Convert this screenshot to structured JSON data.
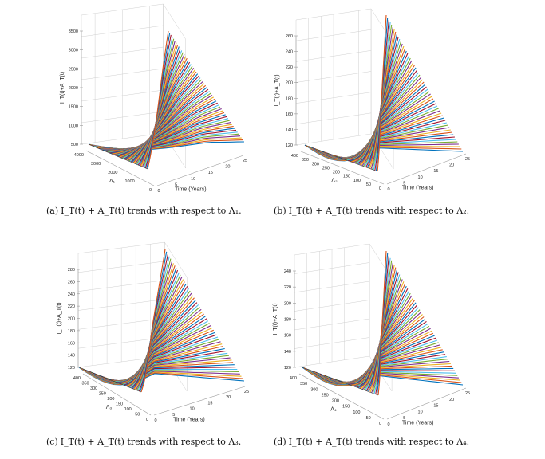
{
  "chart_data": [
    {
      "type": "surface",
      "panel": "a",
      "z_ticks": [
        "3500",
        "3000",
        "2500",
        "2000",
        "1500",
        "1000",
        "500"
      ],
      "lambda_ticks": [
        "4000",
        "3000",
        "2000",
        "1000",
        "0"
      ],
      "t_ticks": [
        "0",
        "5",
        "10",
        "15",
        "20",
        "25"
      ],
      "zlabel": "I_T(t)+A_T(t)",
      "lambda_label": "Λ₁",
      "tlabel": "Time (Years)",
      "caption_label": "(a)",
      "caption_text": "I_T(t) + A_T(t) trends with respect to Λ₁.",
      "colors": [
        "#0072BD",
        "#D95319",
        "#EDB120",
        "#7E2F8E",
        "#77AC30",
        "#4DBEEE",
        "#A2142F"
      ]
    },
    {
      "type": "surface",
      "panel": "b",
      "z_ticks": [
        "260",
        "240",
        "220",
        "200",
        "180",
        "160",
        "140",
        "120"
      ],
      "lambda_ticks": [
        "400",
        "350",
        "300",
        "250",
        "200",
        "150",
        "100",
        "50",
        "0"
      ],
      "t_ticks": [
        "0",
        "5",
        "10",
        "15",
        "20",
        "25"
      ],
      "zlabel": "I_T(t)+A_T(t)",
      "lambda_label": "Λ₂",
      "tlabel": "Time (Years)",
      "caption_label": "(b)",
      "caption_text": "I_T(t) + A_T(t) trends with respect to Λ₂.",
      "colors": [
        "#0072BD",
        "#D95319",
        "#EDB120",
        "#7E2F8E",
        "#77AC30",
        "#4DBEEE",
        "#A2142F"
      ]
    },
    {
      "type": "surface",
      "panel": "c",
      "z_ticks": [
        "280",
        "260",
        "240",
        "220",
        "200",
        "180",
        "160",
        "140",
        "120"
      ],
      "lambda_ticks": [
        "400",
        "350",
        "300",
        "250",
        "200",
        "150",
        "100",
        "50",
        "0"
      ],
      "t_ticks": [
        "0",
        "5",
        "10",
        "15",
        "20",
        "25"
      ],
      "zlabel": "I_T(t)+A_T(t)",
      "lambda_label": "Λ₃",
      "tlabel": "Time (Years)",
      "caption_label": "(c)",
      "caption_text": "I_T(t) + A_T(t) trends with respect to Λ₃.",
      "colors": [
        "#0072BD",
        "#D95319",
        "#EDB120",
        "#7E2F8E",
        "#77AC30",
        "#4DBEEE",
        "#A2142F"
      ]
    },
    {
      "type": "surface",
      "panel": "d",
      "z_ticks": [
        "240",
        "220",
        "200",
        "180",
        "160",
        "140",
        "120"
      ],
      "lambda_ticks": [
        "400",
        "350",
        "300",
        "250",
        "200",
        "150",
        "100",
        "50",
        "0"
      ],
      "t_ticks": [
        "0",
        "5",
        "10",
        "15",
        "20",
        "25"
      ],
      "zlabel": "I_T(t)+A_T(t)",
      "lambda_label": "Λ₄",
      "tlabel": "Time (Years)",
      "caption_label": "(d)",
      "caption_text": "I_T(t) + A_T(t) trends with respect to Λ₄.",
      "colors": [
        "#0072BD",
        "#D95319",
        "#EDB120",
        "#7E2F8E",
        "#77AC30",
        "#4DBEEE",
        "#A2142F"
      ]
    }
  ]
}
